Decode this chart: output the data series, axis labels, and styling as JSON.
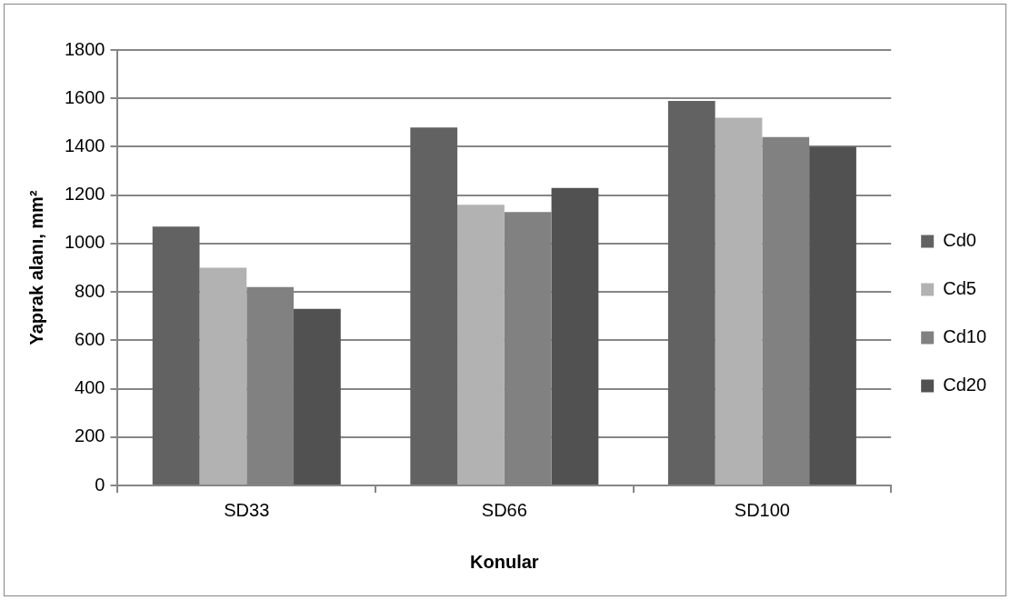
{
  "chart_data": {
    "type": "bar",
    "xlabel": "Konular",
    "ylabel": "Yaprak alanı, mm²",
    "categories": [
      "SD33",
      "SD66",
      "SD100"
    ],
    "series": [
      {
        "name": "Cd0",
        "color": "#626262",
        "values": [
          1070,
          1480,
          1590
        ]
      },
      {
        "name": "Cd5",
        "color": "#b2b2b2",
        "values": [
          900,
          1160,
          1520
        ]
      },
      {
        "name": "Cd10",
        "color": "#818181",
        "values": [
          820,
          1130,
          1440
        ]
      },
      {
        "name": "Cd20",
        "color": "#515151",
        "values": [
          730,
          1230,
          1400
        ]
      }
    ],
    "ylim": [
      0,
      1800
    ],
    "yticks": [
      0,
      200,
      400,
      600,
      800,
      1000,
      1200,
      1400,
      1600,
      1800
    ],
    "grid": "y",
    "legend": "right"
  }
}
